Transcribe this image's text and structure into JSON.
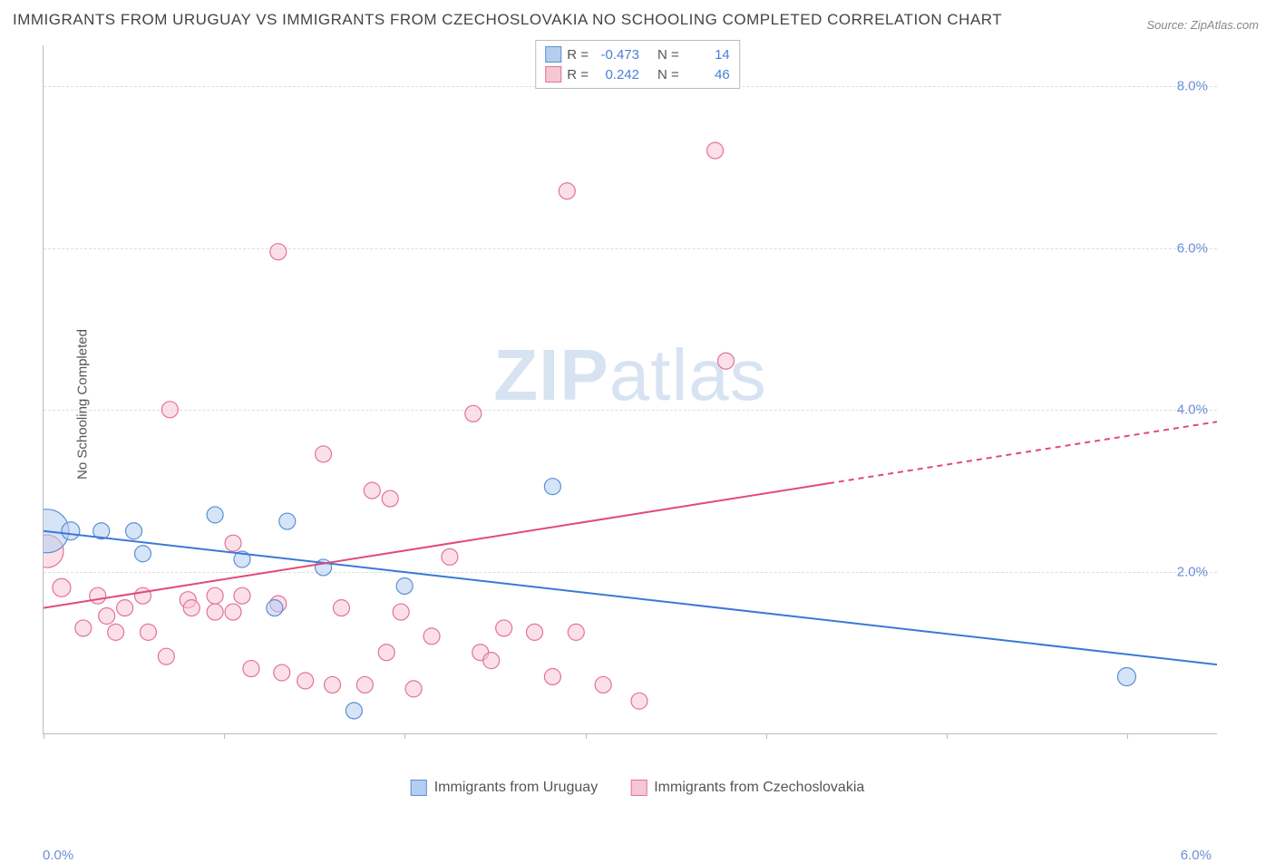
{
  "title": "IMMIGRANTS FROM URUGUAY VS IMMIGRANTS FROM CZECHOSLOVAKIA NO SCHOOLING COMPLETED CORRELATION CHART",
  "source": "Source: ZipAtlas.com",
  "y_axis_label": "No Schooling Completed",
  "watermark_a": "ZIP",
  "watermark_b": "atlas",
  "chart": {
    "type": "scatter",
    "xlim": [
      0,
      6.5
    ],
    "ylim": [
      0,
      8.5
    ],
    "x_ticks": [
      0,
      1,
      2,
      3,
      4,
      5,
      6
    ],
    "x_tick_labels_shown": {
      "0": "0.0%",
      "6": "6.0%"
    },
    "y_gridlines": [
      2,
      4,
      6,
      8
    ],
    "y_tick_labels": {
      "2": "2.0%",
      "4": "4.0%",
      "6": "6.0%",
      "8": "8.0%"
    },
    "background_color": "#ffffff",
    "grid_color": "#dddddd",
    "axis_color": "#bbbbbb",
    "tick_label_color": "#6a8fd8",
    "series": [
      {
        "id": "uruguay",
        "label": "Immigrants from Uruguay",
        "color_fill": "#b4cef0",
        "color_stroke": "#5a8fd6",
        "fill_opacity": 0.55,
        "marker_radius": 9,
        "R": "-0.473",
        "N": "14",
        "trend": {
          "x1": 0,
          "y1": 2.5,
          "x2": 6.5,
          "y2": 0.85,
          "solid_until_x": 6.5,
          "color": "#3b78d8",
          "width": 2
        },
        "points": [
          {
            "x": 0.02,
            "y": 2.5,
            "r": 24
          },
          {
            "x": 0.15,
            "y": 2.5,
            "r": 10
          },
          {
            "x": 0.32,
            "y": 2.5,
            "r": 9
          },
          {
            "x": 0.5,
            "y": 2.5,
            "r": 9
          },
          {
            "x": 0.55,
            "y": 2.22,
            "r": 9
          },
          {
            "x": 0.95,
            "y": 2.7,
            "r": 9
          },
          {
            "x": 1.1,
            "y": 2.15,
            "r": 9
          },
          {
            "x": 1.35,
            "y": 2.62,
            "r": 9
          },
          {
            "x": 1.28,
            "y": 1.55,
            "r": 9
          },
          {
            "x": 1.55,
            "y": 2.05,
            "r": 9
          },
          {
            "x": 1.72,
            "y": 0.28,
            "r": 9
          },
          {
            "x": 2.0,
            "y": 1.82,
            "r": 9
          },
          {
            "x": 2.82,
            "y": 3.05,
            "r": 9
          },
          {
            "x": 6.0,
            "y": 0.7,
            "r": 10
          }
        ]
      },
      {
        "id": "czech",
        "label": "Immigrants from Czechoslovakia",
        "color_fill": "#f7c6d5",
        "color_stroke": "#e27396",
        "fill_opacity": 0.55,
        "marker_radius": 9,
        "R": "0.242",
        "N": "46",
        "trend": {
          "x1": 0,
          "y1": 1.55,
          "x2": 6.5,
          "y2": 3.85,
          "solid_until_x": 4.35,
          "color": "#e24a78",
          "width": 2
        },
        "points": [
          {
            "x": 0.02,
            "y": 2.25,
            "r": 18
          },
          {
            "x": 0.1,
            "y": 1.8,
            "r": 10
          },
          {
            "x": 0.22,
            "y": 1.3,
            "r": 9
          },
          {
            "x": 0.3,
            "y": 1.7,
            "r": 9
          },
          {
            "x": 0.35,
            "y": 1.45,
            "r": 9
          },
          {
            "x": 0.4,
            "y": 1.25,
            "r": 9
          },
          {
            "x": 0.55,
            "y": 1.7,
            "r": 9
          },
          {
            "x": 0.58,
            "y": 1.25,
            "r": 9
          },
          {
            "x": 0.68,
            "y": 0.95,
            "r": 9
          },
          {
            "x": 0.7,
            "y": 4.0,
            "r": 9
          },
          {
            "x": 0.8,
            "y": 1.65,
            "r": 9
          },
          {
            "x": 0.82,
            "y": 1.55,
            "r": 9
          },
          {
            "x": 0.95,
            "y": 1.7,
            "r": 9
          },
          {
            "x": 0.95,
            "y": 1.5,
            "r": 9
          },
          {
            "x": 1.05,
            "y": 2.35,
            "r": 9
          },
          {
            "x": 1.05,
            "y": 1.5,
            "r": 9
          },
          {
            "x": 1.1,
            "y": 1.7,
            "r": 9
          },
          {
            "x": 1.15,
            "y": 0.8,
            "r": 9
          },
          {
            "x": 1.3,
            "y": 5.95,
            "r": 9
          },
          {
            "x": 1.3,
            "y": 1.6,
            "r": 9
          },
          {
            "x": 1.32,
            "y": 0.75,
            "r": 9
          },
          {
            "x": 1.45,
            "y": 0.65,
            "r": 9
          },
          {
            "x": 1.55,
            "y": 3.45,
            "r": 9
          },
          {
            "x": 1.6,
            "y": 0.6,
            "r": 9
          },
          {
            "x": 1.65,
            "y": 1.55,
            "r": 9
          },
          {
            "x": 1.78,
            "y": 0.6,
            "r": 9
          },
          {
            "x": 1.82,
            "y": 3.0,
            "r": 9
          },
          {
            "x": 1.9,
            "y": 1.0,
            "r": 9
          },
          {
            "x": 1.92,
            "y": 2.9,
            "r": 9
          },
          {
            "x": 1.98,
            "y": 1.5,
            "r": 9
          },
          {
            "x": 2.05,
            "y": 0.55,
            "r": 9
          },
          {
            "x": 2.15,
            "y": 1.2,
            "r": 9
          },
          {
            "x": 2.25,
            "y": 2.18,
            "r": 9
          },
          {
            "x": 2.38,
            "y": 3.95,
            "r": 9
          },
          {
            "x": 2.42,
            "y": 1.0,
            "r": 9
          },
          {
            "x": 2.48,
            "y": 0.9,
            "r": 9
          },
          {
            "x": 2.55,
            "y": 1.3,
            "r": 9
          },
          {
            "x": 2.72,
            "y": 1.25,
            "r": 9
          },
          {
            "x": 2.82,
            "y": 0.7,
            "r": 9
          },
          {
            "x": 2.9,
            "y": 6.7,
            "r": 9
          },
          {
            "x": 2.95,
            "y": 1.25,
            "r": 9
          },
          {
            "x": 3.1,
            "y": 0.6,
            "r": 9
          },
          {
            "x": 3.3,
            "y": 0.4,
            "r": 9
          },
          {
            "x": 3.72,
            "y": 7.2,
            "r": 9
          },
          {
            "x": 3.78,
            "y": 4.6,
            "r": 9
          },
          {
            "x": 0.45,
            "y": 1.55,
            "r": 9
          }
        ]
      }
    ]
  },
  "legend_top": {
    "R_label": "R =",
    "N_label": "N ="
  }
}
